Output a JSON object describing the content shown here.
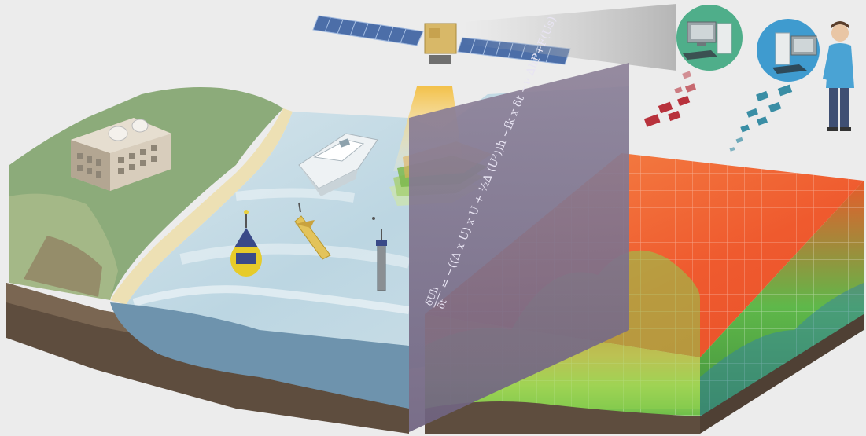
{
  "equation": {
    "lhs_top": "δUh",
    "lhs_bottom": "δt",
    "equals": "=",
    "body": "−((∆ x U) x U + ½∆ (U²))h −fk x δt −ν ∆hP+F(Us)"
  },
  "colors": {
    "background": "#ececec",
    "sea": "#c3dce6",
    "deep_water": "#6e93ad",
    "sand": "#ede0b4",
    "green_land": "#8cab7a",
    "rock": "#6a5a4a",
    "slice_panel": "#7f728f",
    "model_top": "#f06a32",
    "model_green": "#8ccf4e",
    "packet_red": "#b8323c",
    "packet_teal": "#3a8ea5",
    "satellite_beam": "#f0c24a"
  },
  "icons": [
    "satellite-icon",
    "observatory-building-icon",
    "ship-icon",
    "buoy-icon",
    "glider-icon",
    "profiling-float-icon",
    "computer-workstation-icon",
    "person-icon"
  ]
}
